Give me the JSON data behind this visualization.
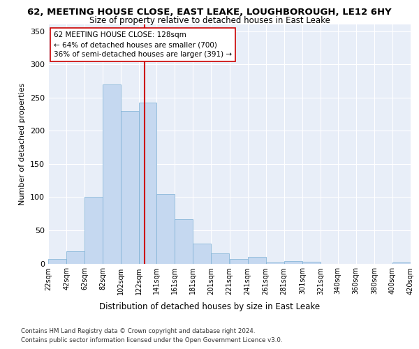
{
  "title": "62, MEETING HOUSE CLOSE, EAST LEAKE, LOUGHBOROUGH, LE12 6HY",
  "subtitle": "Size of property relative to detached houses in East Leake",
  "xlabel": "Distribution of detached houses by size in East Leake",
  "ylabel": "Number of detached properties",
  "bin_labels": [
    "22sqm",
    "42sqm",
    "62sqm",
    "82sqm",
    "102sqm",
    "122sqm",
    "141sqm",
    "161sqm",
    "181sqm",
    "201sqm",
    "221sqm",
    "241sqm",
    "261sqm",
    "281sqm",
    "301sqm",
    "321sqm",
    "340sqm",
    "360sqm",
    "380sqm",
    "400sqm",
    "420sqm"
  ],
  "bar_heights": [
    7,
    18,
    100,
    270,
    230,
    242,
    105,
    67,
    30,
    15,
    7,
    10,
    2,
    4,
    3,
    0,
    0,
    0,
    0,
    2
  ],
  "bar_color": "#c5d8f0",
  "bar_edge_color": "#7bafd4",
  "vline_x": 128,
  "vline_color": "#cc0000",
  "annotation_line1": "62 MEETING HOUSE CLOSE: 128sqm",
  "annotation_line2": "← 64% of detached houses are smaller (700)",
  "annotation_line3": "36% of semi-detached houses are larger (391) →",
  "ylim": [
    0,
    360
  ],
  "yticks": [
    0,
    50,
    100,
    150,
    200,
    250,
    300,
    350
  ],
  "footer1": "Contains HM Land Registry data © Crown copyright and database right 2024.",
  "footer2": "Contains public sector information licensed under the Open Government Licence v3.0.",
  "bin_edges": [
    22,
    42,
    62,
    82,
    102,
    122,
    141,
    161,
    181,
    201,
    221,
    241,
    261,
    281,
    301,
    321,
    340,
    360,
    380,
    400,
    420
  ],
  "bg_color": "#e8eef8"
}
